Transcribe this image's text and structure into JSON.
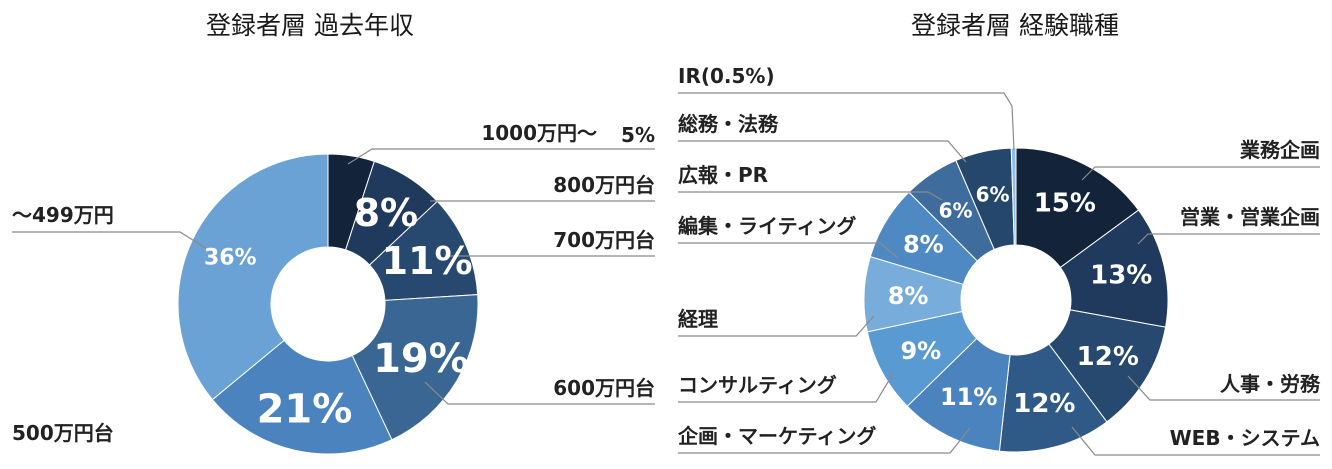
{
  "chart_data": [
    {
      "type": "pie",
      "variant": "donut",
      "title": "登録者層 過去年収",
      "slices": [
        {
          "label": "1000万円～",
          "value": 5,
          "value_label": "5%",
          "color": "#13243a"
        },
        {
          "label": "800万円台",
          "value": 8,
          "value_label": "8%",
          "color": "#1f3a5c"
        },
        {
          "label": "700万円台",
          "value": 11,
          "value_label": "11%",
          "color": "#27496f"
        },
        {
          "label": "600万円台",
          "value": 19,
          "value_label": "19%",
          "color": "#3a6694"
        },
        {
          "label": "500万円台",
          "value": 21,
          "value_label": "21%",
          "color": "#4a83bd"
        },
        {
          "label": "～499万円",
          "value": 36,
          "value_label": "36%",
          "color": "#6aa2d6"
        }
      ]
    },
    {
      "type": "pie",
      "variant": "donut",
      "title": "登録者層 経験職種",
      "slices": [
        {
          "label": "業務企画",
          "value": 15,
          "value_label": "15%",
          "color": "#13243a"
        },
        {
          "label": "営業・営業企画",
          "value": 13,
          "value_label": "13%",
          "color": "#1f3a5c"
        },
        {
          "label": "人事・労務",
          "value": 12,
          "value_label": "12%",
          "color": "#27496f"
        },
        {
          "label": "WEB・システム",
          "value": 12,
          "value_label": "12%",
          "color": "#2f5a87"
        },
        {
          "label": "企画・マーケティング",
          "value": 11,
          "value_label": "11%",
          "color": "#4a83bd"
        },
        {
          "label": "コンサルティング",
          "value": 9,
          "value_label": "9%",
          "color": "#5a9ad2"
        },
        {
          "label": "経理",
          "value": 8,
          "value_label": "8%",
          "color": "#78acdb"
        },
        {
          "label": "編集・ライティング",
          "value": 8,
          "value_label": "8%",
          "color": "#4f89c3"
        },
        {
          "label": "広報・PR",
          "value": 6,
          "value_label": "6%",
          "color": "#3e6c9c"
        },
        {
          "label": "総務・法務",
          "value": 6,
          "value_label": "6%",
          "color": "#26476c"
        },
        {
          "label": "IR(0.5%)",
          "value": 0.5,
          "value_label": "",
          "color": "#8cc0ea"
        }
      ]
    }
  ]
}
